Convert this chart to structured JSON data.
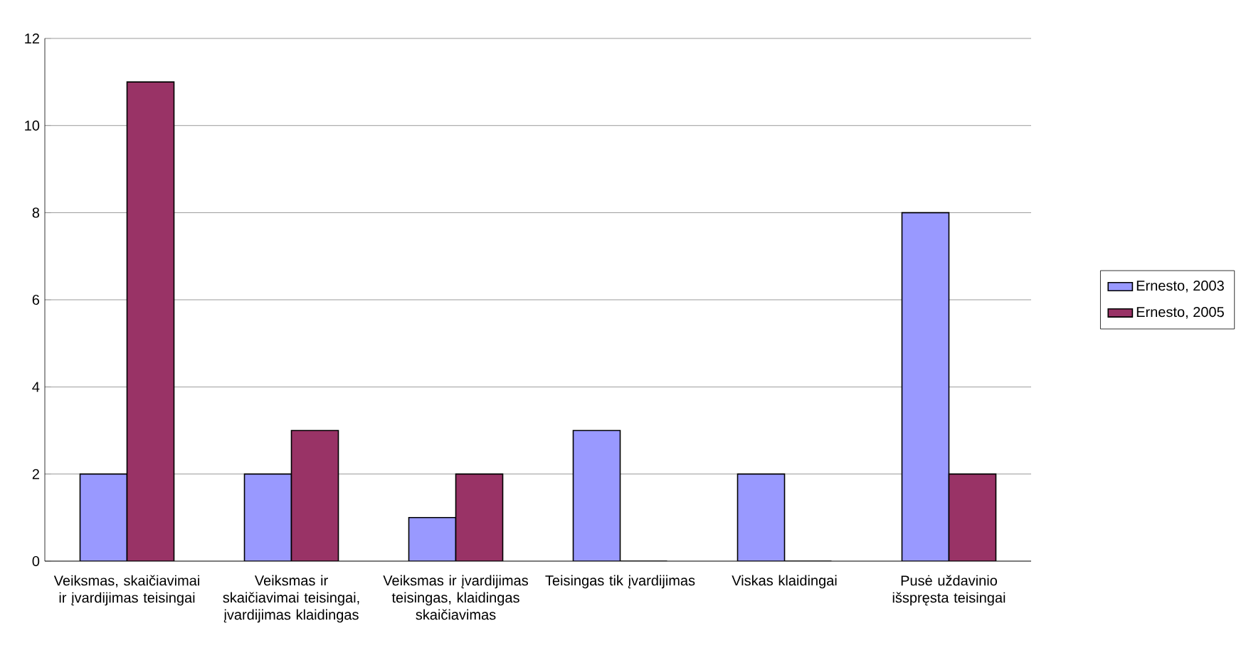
{
  "chart_data": {
    "type": "bar",
    "categories": [
      "Veiksmas, skaičiavimai ir įvardijimas teisingai",
      "Veiksmas ir skaičiavimai teisingai, įvardijimas klaidingas",
      "Veiksmas ir įvardijimas teisingas, klaidingas skaičiavimas",
      "Teisingas tik įvardijimas",
      "Viskas klaidingai",
      "Pusė uždavinio išspręsta teisingai"
    ],
    "series": [
      {
        "name": "Ernesto, 2003",
        "color": "#9999ff",
        "values": [
          2,
          2,
          1,
          3,
          2,
          8
        ]
      },
      {
        "name": "Ernesto, 2005",
        "color": "#993366",
        "values": [
          11,
          3,
          2,
          0,
          0,
          2
        ]
      }
    ],
    "ylim": [
      0,
      12
    ],
    "yticks": [
      0,
      2,
      4,
      6,
      8,
      10,
      12
    ],
    "grid": "y",
    "legend": "right"
  }
}
